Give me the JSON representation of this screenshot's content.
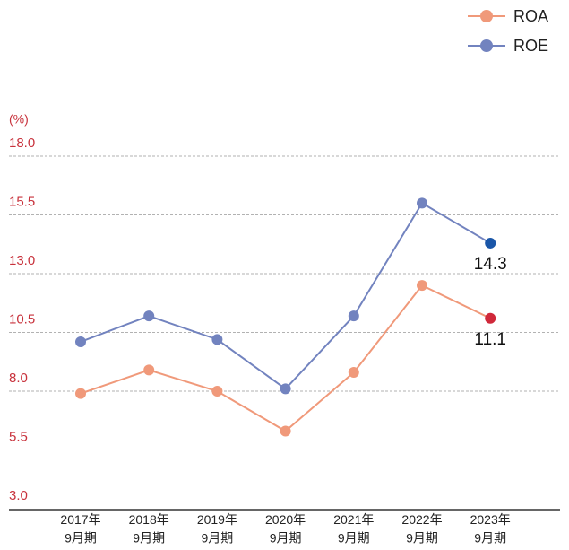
{
  "chart_data": {
    "type": "line",
    "y_axis_label": "(%)",
    "categories": [
      "2017年\n9月期",
      "2018年\n9月期",
      "2019年\n9月期",
      "2020年\n9月期",
      "2021年\n9月期",
      "2022年\n9月期",
      "2023年\n9月期"
    ],
    "series": [
      {
        "name": "ROA",
        "color": "#f0997a",
        "highlight_color": "#d0283a",
        "values": [
          7.9,
          8.9,
          8.0,
          6.3,
          8.8,
          12.5,
          11.1
        ]
      },
      {
        "name": "ROE",
        "color": "#7283bf",
        "highlight_color": "#1a56a8",
        "values": [
          10.1,
          11.2,
          10.2,
          8.1,
          11.2,
          16.0,
          14.3
        ]
      }
    ],
    "label_last": true,
    "ylim": [
      3,
      18
    ],
    "yticks": [
      {
        "value": 3,
        "label": "3.0"
      },
      5.5,
      {
        "value": 8,
        "label": "8.0"
      },
      10.5,
      {
        "value": 13,
        "label": "13.0"
      },
      15.5,
      {
        "value": 18,
        "label": "18.0"
      }
    ],
    "grid": true,
    "legend": "top-right"
  }
}
